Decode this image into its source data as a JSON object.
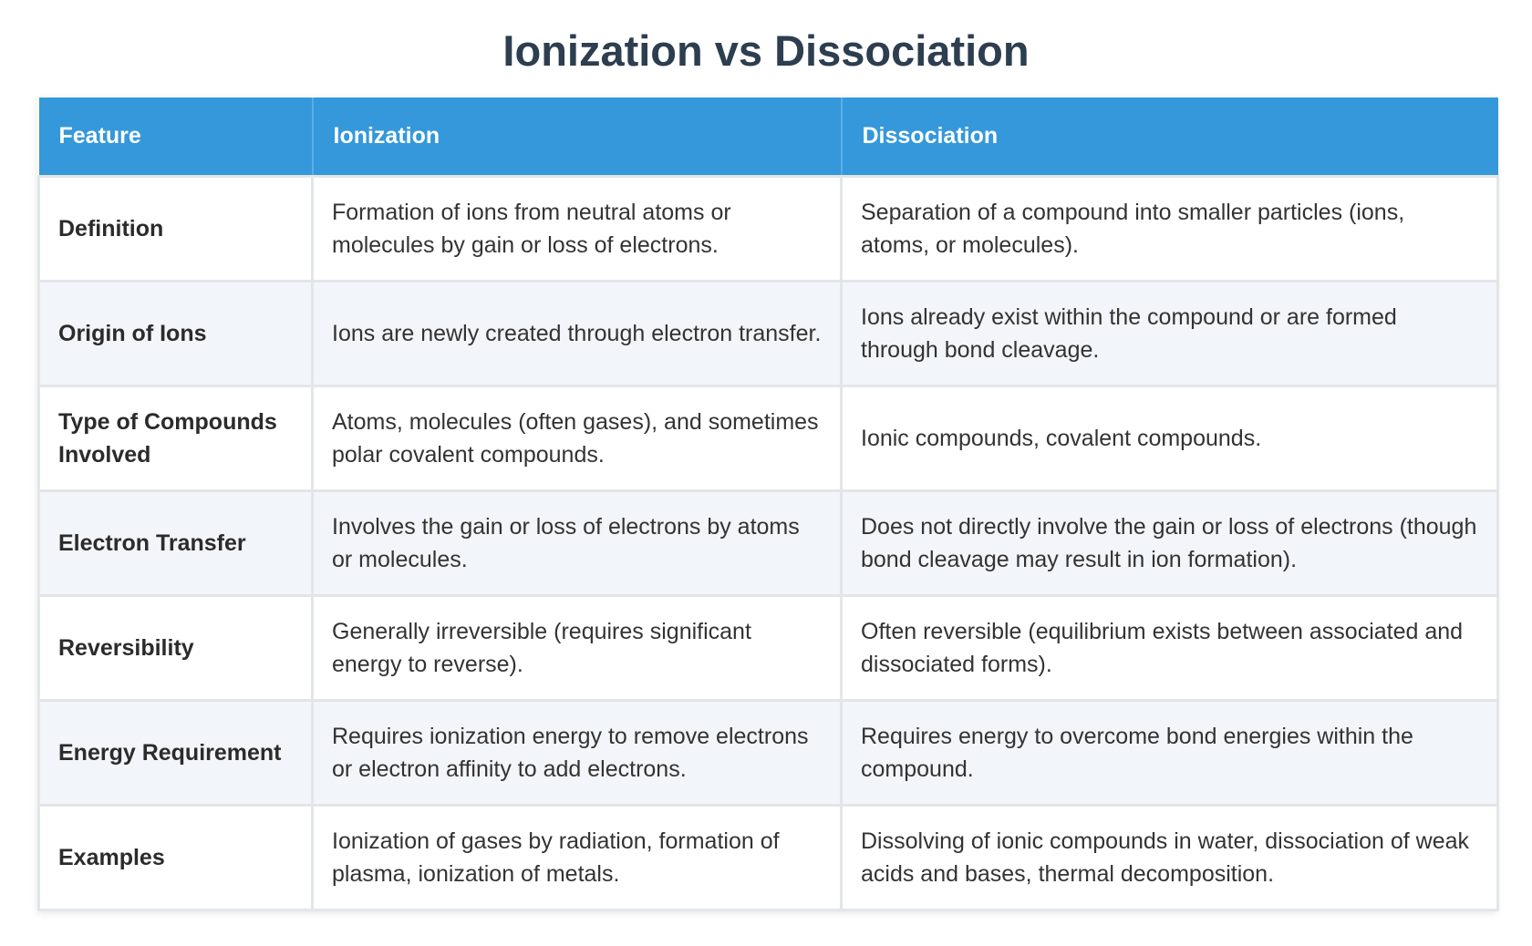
{
  "title": "Ionization vs Dissociation",
  "table": {
    "headers": [
      "Feature",
      "Ionization",
      "Dissociation"
    ],
    "rows": [
      [
        "Definition",
        "Formation of ions from neutral atoms or molecules by gain or loss of electrons.",
        "Separation of a compound into smaller particles (ions, atoms, or molecules)."
      ],
      [
        "Origin of Ions",
        "Ions are newly created through electron transfer.",
        "Ions already exist within the compound or are formed through bond cleavage."
      ],
      [
        "Type of Compounds Involved",
        "Atoms, molecules (often gases), and sometimes polar covalent compounds.",
        "Ionic compounds, covalent compounds."
      ],
      [
        "Electron Transfer",
        "Involves the gain or loss of electrons by atoms or molecules.",
        "Does not directly involve the gain or loss of electrons (though bond cleavage may result in ion formation)."
      ],
      [
        "Reversibility",
        "Generally irreversible (requires significant energy to reverse).",
        "Often reversible (equilibrium exists between associated and dissociated forms)."
      ],
      [
        "Energy Requirement",
        "Requires ionization energy to remove electrons or electron affinity to add electrons.",
        "Requires energy to overcome bond energies within the compound."
      ],
      [
        "Examples",
        "Ionization of gases by radiation, formation of plasma, ionization of metals.",
        "Dissolving of ionic compounds in water, dissociation of weak acids and bases, thermal decomposition."
      ]
    ]
  },
  "colors": {
    "header_bg": "#3498db",
    "title_text": "#2c3e50",
    "alt_row_bg": "#f2f5f9",
    "border": "#e3e6e9"
  }
}
